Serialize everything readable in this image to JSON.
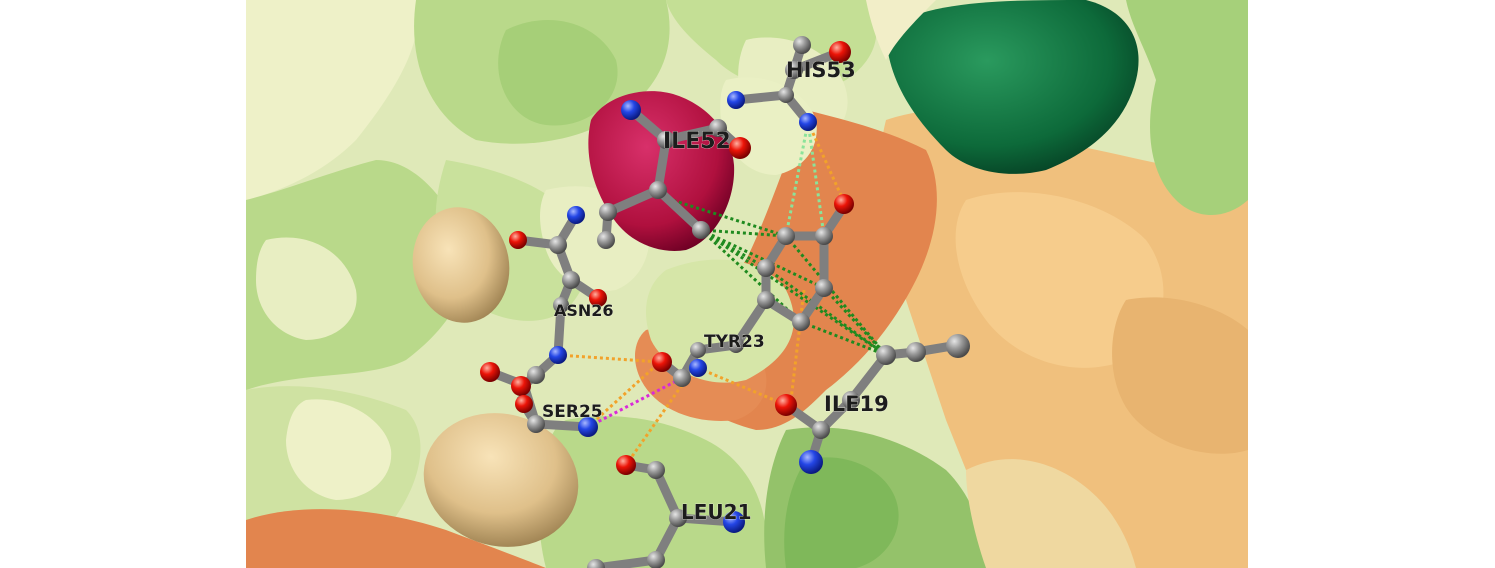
{
  "scene": {
    "residue_labels": {
      "his53": "HIS53",
      "ile52": "ILE52",
      "asn26": "ASN26",
      "tyr23": "TYR23",
      "ser25": "SER25",
      "ile19": "ILE19",
      "leu21": "LEU21"
    },
    "colors": {
      "surface_pale_green": "#dfe9b8",
      "surface_light_green": "#b9d98a",
      "surface_mid_green": "#94c26a",
      "surface_dark_green": "#0f6b3d",
      "surface_orange": "#e2854e",
      "surface_tan": "#f0c07d",
      "surface_beige": "#e6cf95",
      "highlight_crimson": "#b3123f",
      "carbon_atom": "#8e8e8e",
      "oxygen_atom": "#e8100a",
      "nitrogen_atom": "#1f3fe0",
      "interaction_orange": "#f2a22a",
      "interaction_dark_green": "#1f8a1f",
      "interaction_light_green": "#8be39a",
      "interaction_magenta": "#d92ad9"
    }
  }
}
